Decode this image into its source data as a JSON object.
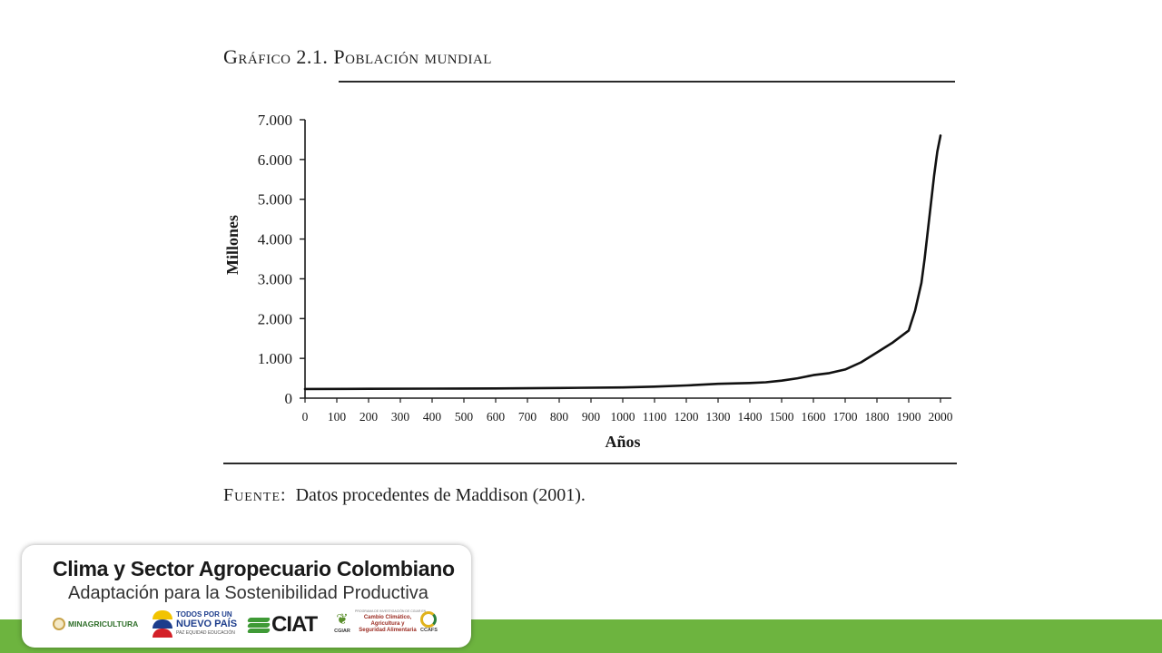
{
  "slide": {
    "chart_title": "Gráfico 2.1. Población mundial",
    "source_label": "Fuente:",
    "source_text": "Datos procedentes de Maddison (2001)."
  },
  "chart_data": {
    "type": "line",
    "title": "Gráfico 2.1. Población mundial",
    "xlabel": "Años",
    "ylabel": "Millones",
    "xlim": [
      0,
      2000
    ],
    "ylim": [
      0,
      7000
    ],
    "x_ticks": [
      "0",
      "100",
      "200",
      "300",
      "400",
      "500",
      "600",
      "700",
      "800",
      "900",
      "1000",
      "1100",
      "1200",
      "1300",
      "1400",
      "1500",
      "1600",
      "1700",
      "1800",
      "1900",
      "2000"
    ],
    "y_ticks": [
      "0",
      "1.000",
      "2.000",
      "3.000",
      "4.000",
      "5.000",
      "6.000",
      "7.000"
    ],
    "grid": false,
    "series": [
      {
        "x": [
          0,
          200,
          400,
          600,
          800,
          1000,
          1100,
          1200,
          1300,
          1400,
          1450,
          1500,
          1550,
          1600,
          1650,
          1700,
          1750,
          1800,
          1850,
          1900,
          1920,
          1940,
          1950,
          1960,
          1970,
          1980,
          1990,
          2000
        ],
        "y": [
          230,
          235,
          240,
          245,
          255,
          270,
          290,
          320,
          360,
          380,
          400,
          440,
          500,
          580,
          630,
          720,
          900,
          1150,
          1400,
          1700,
          2200,
          2900,
          3500,
          4200,
          4900,
          5600,
          6200,
          6600
        ]
      }
    ]
  },
  "footer": {
    "card_title": "Clima y Sector Agropecuario Colombiano",
    "card_subtitle": "Adaptación para la Sostenibilidad Productiva",
    "logos": {
      "minagricultura": "MINAGRICULTURA",
      "tpnp_line1": "TODOS POR UN",
      "tpnp_line2": "NUEVO PAÍS",
      "tpnp_line3": "PAZ  EQUIDAD  EDUCACIÓN",
      "ciat": "CIAT",
      "cgiar": "CGIAR",
      "ccafs_small": "PROGRAMA DE INVESTIGACIÓN DE CGIAR EN",
      "ccafs_line1": "Cambio Climático,",
      "ccafs_line2": "Agricultura y",
      "ccafs_line3": "Seguridad Alimentaria",
      "ccafs": "CCAFS"
    },
    "accent_color": "#6db43f"
  }
}
